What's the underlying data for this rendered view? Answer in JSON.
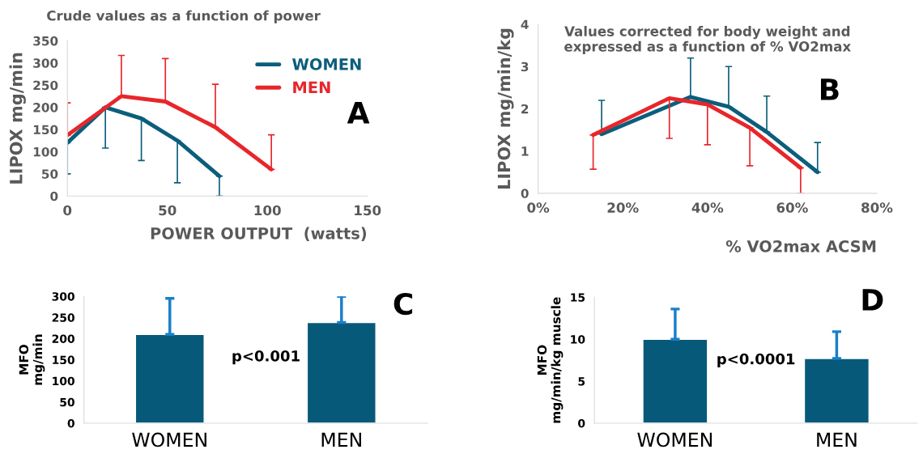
{
  "chart_data": [
    {
      "type": "line",
      "title": "Crude values as a function of power",
      "xlabel": "POWER OUTPUT  (watts)",
      "ylabel": "LIPOX mg/min",
      "xlim": [
        0,
        150
      ],
      "xticks": [
        0,
        50,
        100,
        150
      ],
      "ylim": [
        0,
        350
      ],
      "yticks": [
        0,
        50,
        100,
        150,
        200,
        250,
        300,
        350
      ],
      "legend": "top right",
      "grid": false,
      "annotations": [
        "A"
      ],
      "series": [
        {
          "name": "WOMEN",
          "color": "#0b5e7c",
          "x": [
            0,
            19,
            37,
            55,
            76
          ],
          "values": [
            120,
            200,
            175,
            125,
            45
          ],
          "errors": [
            [
              50,
              120
            ],
            [
              108,
              200
            ],
            [
              80,
              175
            ],
            [
              30,
              125
            ],
            [
              0,
              45
            ]
          ]
        },
        {
          "name": "MEN",
          "color": "#e8262a",
          "x": [
            0,
            27,
            49,
            74,
            102
          ],
          "values": [
            137,
            225,
            213,
            155,
            60
          ],
          "errors": [
            [
              137,
              210
            ],
            [
              225,
              317
            ],
            [
              213,
              310
            ],
            [
              155,
              252
            ],
            [
              60,
              138
            ]
          ]
        }
      ]
    },
    {
      "type": "line",
      "title": "Values corrected for body weight and\nexpressed as a function of % VO2max",
      "xlabel": "% VO2max ACSM",
      "ylabel": "LIPOX mg/min/kg",
      "xlim": [
        0,
        80
      ],
      "xticks": [
        {
          "value": 0,
          "label": "0%"
        },
        {
          "value": 20,
          "label": "20%"
        },
        {
          "value": 40,
          "label": "40%"
        },
        {
          "value": 60,
          "label": "60%"
        },
        {
          "value": 80,
          "label": "80%"
        }
      ],
      "ylim": [
        0,
        4
      ],
      "yticks": [
        0,
        1,
        2,
        3,
        4
      ],
      "grid": false,
      "annotations": [
        "B"
      ],
      "series": [
        {
          "color": "#0b5e7c",
          "x": [
            15,
            36,
            45,
            54,
            66
          ],
          "values": [
            1.4,
            2.28,
            2.05,
            1.45,
            0.5
          ],
          "errors": [
            [
              1.4,
              2.2
            ],
            [
              2.28,
              3.2
            ],
            [
              2.05,
              3.0
            ],
            [
              1.45,
              2.3
            ],
            [
              0.5,
              1.2
            ]
          ]
        },
        {
          "color": "#e8262a",
          "x": [
            13,
            31,
            40,
            50,
            62
          ],
          "values": [
            1.38,
            2.25,
            2.1,
            1.55,
            0.6
          ],
          "errors": [
            [
              0.57,
              1.38
            ],
            [
              1.3,
              2.25
            ],
            [
              1.15,
              2.1
            ],
            [
              0.65,
              1.55
            ],
            [
              0,
              0.6
            ]
          ]
        }
      ]
    },
    {
      "type": "bar",
      "ylabel": "MFO\nmg/min",
      "categories": [
        "WOMEN",
        "MEN"
      ],
      "values": [
        210,
        238
      ],
      "errors": [
        [
          210,
          295
        ],
        [
          238,
          300
        ]
      ],
      "color": "#07597a",
      "ylim": [
        0,
        300
      ],
      "yticks": [
        0,
        50,
        100,
        150,
        200,
        250,
        300
      ],
      "grid": false,
      "annotations": [
        "C",
        "p<0.001"
      ]
    },
    {
      "type": "bar",
      "ylabel": "MFO\nmg/min/kg muscle",
      "categories": [
        "WOMEN",
        "MEN"
      ],
      "values": [
        10,
        7.7
      ],
      "errors": [
        [
          10,
          13.6
        ],
        [
          7.7,
          10.9
        ]
      ],
      "color": "#07597a",
      "ylim": [
        0,
        15
      ],
      "yticks": [
        0,
        5,
        10,
        15
      ],
      "grid": false,
      "annotations": [
        "D",
        "p<0.0001"
      ]
    }
  ]
}
